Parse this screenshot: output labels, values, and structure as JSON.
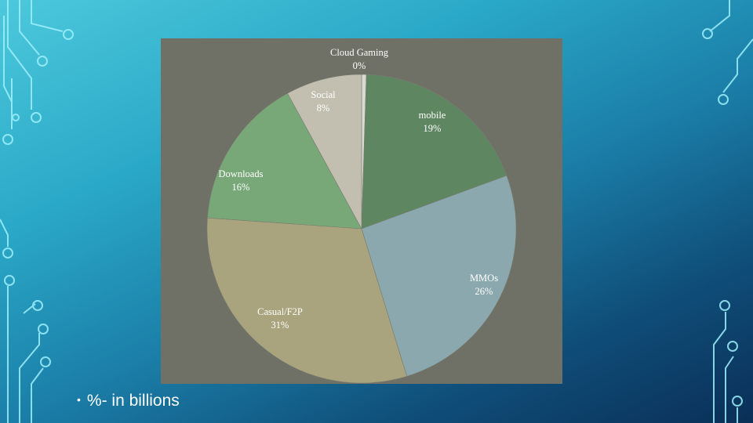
{
  "slide": {
    "caption_bullet": "•",
    "caption": "%- in billions"
  },
  "colors": {
    "background_top": "#4cc9dc",
    "background_bottom": "#0a2f57",
    "panel": "#6f7166",
    "circuit": "#8fe6f2"
  },
  "chart_data": {
    "type": "pie",
    "start_angle_deg": 0,
    "direction": "clockwise",
    "slices": [
      {
        "label": "Cloud Gaming",
        "value_text": "0%",
        "value": 0.5,
        "color": "#d9d9cf"
      },
      {
        "label": "mobile",
        "value_text": "19%",
        "value": 19,
        "color": "#5e8661"
      },
      {
        "label": "MMOs",
        "value_text": "26%",
        "value": 26,
        "color": "#8aa8ae"
      },
      {
        "label": "Casual/F2P",
        "value_text": "31%",
        "value": 31,
        "color": "#a9a47e"
      },
      {
        "label": "Downloads",
        "value_text": "16%",
        "value": 16,
        "color": "#78a878"
      },
      {
        "label": "Social",
        "value_text": "8%",
        "value": 8,
        "color": "#c2bfb0"
      }
    ]
  }
}
